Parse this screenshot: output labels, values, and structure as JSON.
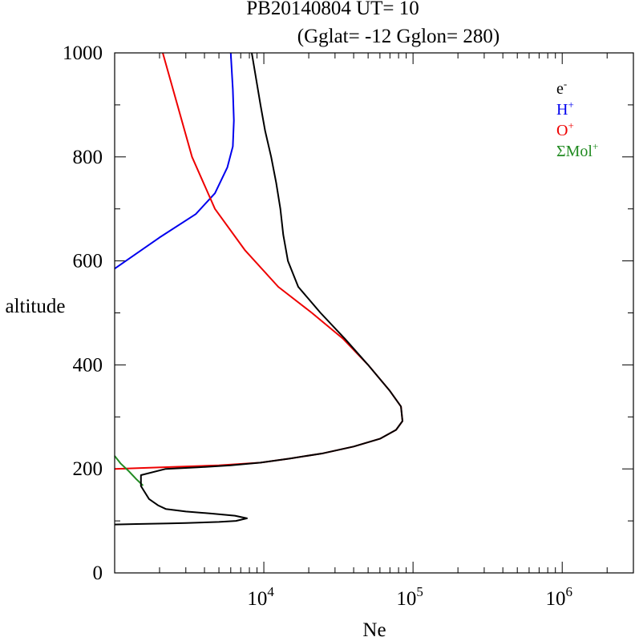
{
  "chart_data": {
    "type": "line",
    "title": "PB20140804   UT=  10",
    "subtitle": "(Gglat= -12   Gglon=  280)",
    "xlabel": "Ne",
    "ylabel": "altitude",
    "x_scale": "log",
    "xlim": [
      1000,
      3000000
    ],
    "ylim": [
      0,
      1000
    ],
    "x_ticks": [
      {
        "value": 10000,
        "base": "10",
        "exp": "4"
      },
      {
        "value": 100000,
        "base": "10",
        "exp": "5"
      },
      {
        "value": 1000000,
        "base": "10",
        "exp": "6"
      }
    ],
    "y_ticks": [
      0,
      200,
      400,
      600,
      800,
      1000
    ],
    "legend_position": "top-right",
    "grid": false,
    "series": [
      {
        "name": "e-",
        "label_base": "e",
        "label_sup": "-",
        "color": "#000000",
        "x": [
          1000,
          1400,
          2300,
          3000,
          5000,
          6500,
          7700,
          6400,
          4500,
          3000,
          2200,
          1950,
          1700,
          1500,
          1500,
          2200,
          3600,
          6000,
          9500,
          15000,
          25000,
          40000,
          60000,
          77000,
          85000,
          83000,
          70000,
          50000,
          35000,
          24000,
          17000,
          14500,
          13500,
          12900,
          12100,
          11200,
          10200,
          9500,
          8300
        ],
        "y": [
          93,
          94,
          95,
          96,
          98,
          100,
          105,
          110,
          114,
          118,
          123,
          130,
          142,
          167,
          188,
          200,
          203,
          207,
          212,
          220,
          230,
          243,
          258,
          275,
          292,
          320,
          350,
          400,
          450,
          500,
          550,
          600,
          650,
          700,
          750,
          800,
          850,
          900,
          1000
        ]
      },
      {
        "name": "H+",
        "label_base": "H",
        "label_sup": "+",
        "color": "#0000ee",
        "x": [
          1000,
          2000,
          3500,
          4700,
          5700,
          6200,
          6300,
          6200,
          6000
        ],
        "y": [
          585,
          645,
          690,
          730,
          780,
          820,
          870,
          930,
          1000
        ]
      },
      {
        "name": "O+",
        "label_base": "O",
        "label_sup": "+",
        "color": "#ee0000",
        "x": [
          1000,
          5000,
          9500,
          15000,
          25000,
          40000,
          60000,
          77000,
          85000,
          83000,
          70000,
          50000,
          34000,
          21000,
          12500,
          7500,
          4700,
          3300,
          2100
        ],
        "y": [
          200,
          207,
          212,
          220,
          230,
          243,
          258,
          275,
          292,
          320,
          350,
          400,
          450,
          500,
          550,
          620,
          700,
          800,
          1000
        ]
      },
      {
        "name": "ΣMol+",
        "label_base": "ΣMol",
        "label_sup": "+",
        "color": "#228b22",
        "x": [
          1000,
          1100,
          1250,
          1400,
          1550
        ],
        "y": [
          225,
          210,
          195,
          180,
          168
        ]
      }
    ]
  }
}
